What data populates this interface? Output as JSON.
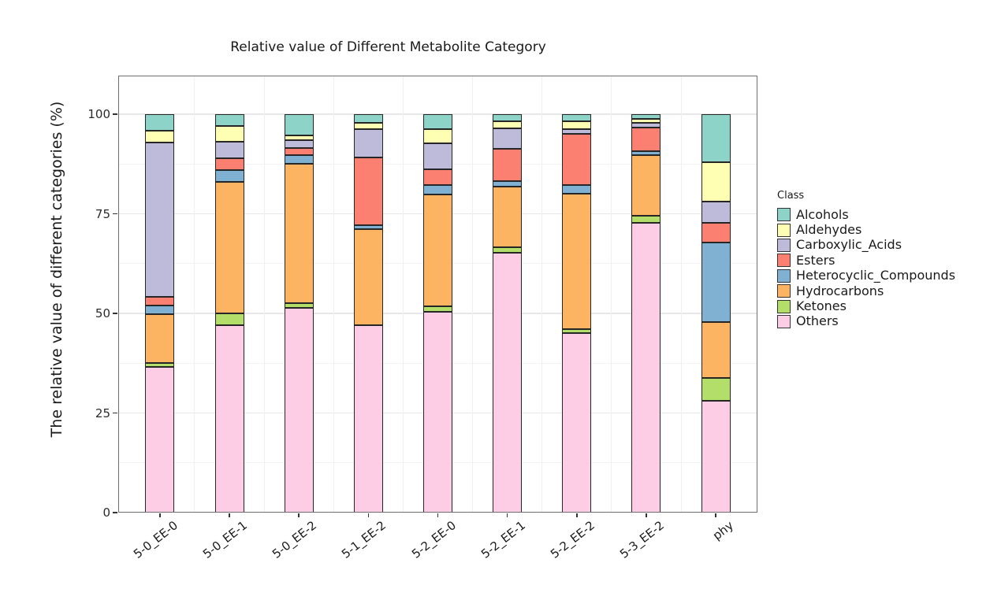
{
  "chart_data": {
    "type": "bar",
    "stacked": true,
    "title": "Relative value of Different Metabolite Category",
    "ylabel": "The relative value of different categories (%)",
    "xlabel": "",
    "ylim": [
      0,
      100
    ],
    "y_ticks": [
      0,
      25,
      50,
      75,
      100
    ],
    "grid": true,
    "legend_title": "Class",
    "legend_position": "right",
    "x_tick_rotation_deg": 38,
    "categories": [
      "5-0_EE-0",
      "5-0_EE-1",
      "5-0_EE-2",
      "5-1_EE-2",
      "5-2_EE-0",
      "5-2_EE-1",
      "5-2_EE-2",
      "5-3_EE-2",
      "phy"
    ],
    "series": [
      {
        "name": "Alcohols",
        "color": "#8DD3C7",
        "values": [
          4.2,
          2.9,
          5.3,
          2.2,
          3.7,
          1.7,
          1.7,
          1.1,
          12.0
        ]
      },
      {
        "name": "Aldehydes",
        "color": "#FFFFB3",
        "values": [
          2.9,
          4.0,
          1.3,
          1.5,
          3.6,
          1.8,
          2.0,
          1.1,
          10.0
        ]
      },
      {
        "name": "Carboxylic_Acids",
        "color": "#BEBADA",
        "values": [
          38.7,
          4.1,
          2.0,
          7.2,
          6.6,
          5.2,
          1.2,
          1.1,
          5.3
        ]
      },
      {
        "name": "Esters",
        "color": "#FB8072",
        "values": [
          2.2,
          3.0,
          1.7,
          16.9,
          3.8,
          8.2,
          12.9,
          6.0,
          4.9
        ]
      },
      {
        "name": "Heterocyclic_Compounds",
        "color": "#80B1D3",
        "values": [
          2.2,
          3.0,
          2.2,
          1.1,
          2.5,
          1.3,
          2.2,
          1.0,
          20.0
        ]
      },
      {
        "name": "Hydrocarbons",
        "color": "#FDB462",
        "values": [
          12.3,
          33.0,
          35.0,
          24.1,
          28.0,
          15.3,
          34.0,
          15.2,
          14.1
        ]
      },
      {
        "name": "Ketones",
        "color": "#B3DE69",
        "values": [
          1.0,
          2.9,
          1.2,
          0.0,
          1.5,
          1.2,
          0.9,
          1.8,
          5.6
        ]
      },
      {
        "name": "Others",
        "color": "#FCCDE5",
        "values": [
          36.5,
          47.1,
          51.3,
          47.0,
          50.3,
          65.3,
          45.1,
          72.7,
          28.1
        ]
      }
    ]
  }
}
